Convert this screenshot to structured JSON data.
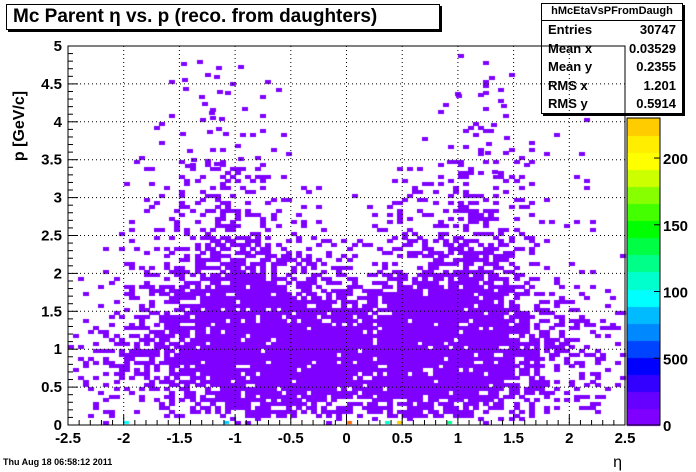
{
  "title": "Mc Parent η vs. p (reco. from daughters)",
  "timestamp": "Thu Aug 18 06:58:12 2011",
  "stats": {
    "name": "hMcEtaVsPFromDaugh",
    "rows": [
      {
        "label": "Entries",
        "value": "30747"
      },
      {
        "label": "Mean x",
        "value": "0.03529"
      },
      {
        "label": "Mean y",
        "value": "0.2355"
      },
      {
        "label": "RMS x",
        "value": "1.201"
      },
      {
        "label": "RMS y",
        "value": "0.5914"
      }
    ]
  },
  "colors": {
    "frame": "#000000",
    "grid": "#000000",
    "low_bin": "#7f00ff",
    "palette": [
      "#7f00ff",
      "#6600ff",
      "#3300ff",
      "#0000ff",
      "#0044ff",
      "#0088ff",
      "#00bbff",
      "#00ffff",
      "#00ffcc",
      "#00ff88",
      "#00ff44",
      "#00ff00",
      "#44ff00",
      "#88ff00",
      "#ccff00",
      "#ffff00",
      "#ffee00",
      "#ffcc00"
    ]
  },
  "chart_data": {
    "type": "heatmap",
    "title": "Mc Parent η vs. p (reco. from daughters)",
    "xlabel": "η",
    "ylabel": "p [GeV/c]",
    "xlim": [
      -2.5,
      2.5
    ],
    "ylim": [
      0,
      5
    ],
    "x_ticks": [
      "-2.5",
      "-2",
      "-1.5",
      "-1",
      "-0.5",
      "0",
      "0.5",
      "1",
      "1.5",
      "2",
      "2.5"
    ],
    "y_ticks": [
      "0",
      "0.5",
      "1",
      "1.5",
      "2",
      "2.5",
      "3",
      "3.5",
      "4",
      "4.5",
      "5"
    ],
    "colorbar_labels": [
      "0",
      "500",
      "100",
      "150",
      "200"
    ],
    "colorbar_max": 2300,
    "grid": true,
    "stats": {
      "entries": 30747,
      "mean_x": 0.03529,
      "mean_y": 0.2355,
      "rms_x": 1.201,
      "rms_y": 0.5914
    },
    "density_description_blobs": [
      {
        "x": -0.9,
        "y": 1.1,
        "sx": 0.55,
        "sy": 0.75,
        "w": 1.0
      },
      {
        "x": 0.9,
        "y": 1.1,
        "sx": 0.55,
        "sy": 0.75,
        "w": 1.0
      },
      {
        "x": 0.0,
        "y": 0.9,
        "sx": 0.9,
        "sy": 0.45,
        "w": 0.9
      },
      {
        "x": -1.1,
        "y": 2.4,
        "sx": 0.35,
        "sy": 0.9,
        "w": 0.35
      },
      {
        "x": 1.1,
        "y": 2.4,
        "sx": 0.35,
        "sy": 0.9,
        "w": 0.35
      },
      {
        "x": -2.1,
        "y": 0.9,
        "sx": 0.3,
        "sy": 0.5,
        "w": 0.3
      },
      {
        "x": 2.1,
        "y": 0.9,
        "sx": 0.3,
        "sy": 0.5,
        "w": 0.3
      }
    ]
  }
}
